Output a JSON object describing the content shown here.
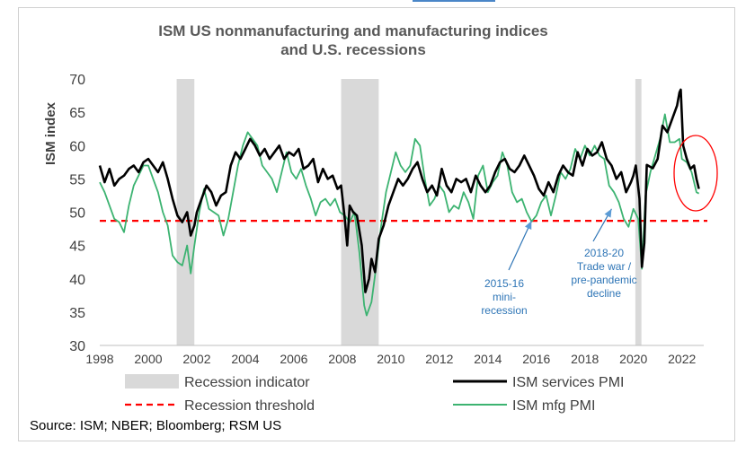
{
  "chart_data": {
    "type": "line",
    "title_line1": "ISM US nonmanufacturing and manufacturing indices",
    "title_line2": "and U.S. recessions",
    "ylabel": "ISM index",
    "xlabel": "",
    "xlim": [
      1998,
      2022.9
    ],
    "ylim": [
      30,
      70
    ],
    "x_ticks": [
      "1998",
      "2000",
      "2002",
      "2004",
      "2006",
      "2008",
      "2010",
      "2012",
      "2014",
      "2016",
      "2018",
      "2020",
      "2022"
    ],
    "y_ticks": [
      "30",
      "35",
      "40",
      "45",
      "50",
      "55",
      "60",
      "65",
      "70"
    ],
    "recession_periods": [
      [
        2001.17,
        2001.9
      ],
      [
        2007.95,
        2009.5
      ],
      [
        2020.08,
        2020.33
      ]
    ],
    "recession_threshold": 48.7,
    "series": [
      {
        "name": "ISM services PMI",
        "color": "#000000",
        "points": [
          [
            1998.0,
            57.0
          ],
          [
            1998.2,
            54.5
          ],
          [
            1998.4,
            56.5
          ],
          [
            1998.6,
            54.0
          ],
          [
            1998.8,
            55.0
          ],
          [
            1999.0,
            55.5
          ],
          [
            1999.2,
            56.5
          ],
          [
            1999.4,
            57.0
          ],
          [
            1999.6,
            56.0
          ],
          [
            1999.8,
            57.5
          ],
          [
            2000.0,
            58.0
          ],
          [
            2000.2,
            57.0
          ],
          [
            2000.4,
            56.0
          ],
          [
            2000.6,
            57.5
          ],
          [
            2000.8,
            55.0
          ],
          [
            2001.0,
            52.0
          ],
          [
            2001.2,
            49.5
          ],
          [
            2001.4,
            48.5
          ],
          [
            2001.6,
            50.0
          ],
          [
            2001.75,
            46.5
          ],
          [
            2001.9,
            48.0
          ],
          [
            2002.0,
            50.0
          ],
          [
            2002.2,
            52.0
          ],
          [
            2002.4,
            54.0
          ],
          [
            2002.6,
            53.0
          ],
          [
            2002.8,
            51.0
          ],
          [
            2003.0,
            52.5
          ],
          [
            2003.2,
            53.0
          ],
          [
            2003.4,
            57.0
          ],
          [
            2003.6,
            59.0
          ],
          [
            2003.8,
            58.0
          ],
          [
            2004.0,
            59.5
          ],
          [
            2004.2,
            61.0
          ],
          [
            2004.4,
            60.0
          ],
          [
            2004.6,
            58.5
          ],
          [
            2004.8,
            59.5
          ],
          [
            2005.0,
            58.0
          ],
          [
            2005.2,
            59.0
          ],
          [
            2005.4,
            60.0
          ],
          [
            2005.6,
            58.0
          ],
          [
            2005.8,
            59.0
          ],
          [
            2006.0,
            58.5
          ],
          [
            2006.2,
            59.5
          ],
          [
            2006.4,
            56.5
          ],
          [
            2006.6,
            57.0
          ],
          [
            2006.8,
            58.0
          ],
          [
            2007.0,
            54.5
          ],
          [
            2007.2,
            56.5
          ],
          [
            2007.4,
            55.0
          ],
          [
            2007.6,
            55.5
          ],
          [
            2007.8,
            53.5
          ],
          [
            2007.95,
            54.0
          ],
          [
            2008.1,
            49.0
          ],
          [
            2008.2,
            45.0
          ],
          [
            2008.3,
            51.0
          ],
          [
            2008.45,
            50.0
          ],
          [
            2008.6,
            49.5
          ],
          [
            2008.8,
            45.0
          ],
          [
            2008.95,
            38.0
          ],
          [
            2009.1,
            40.0
          ],
          [
            2009.2,
            43.0
          ],
          [
            2009.35,
            41.0
          ],
          [
            2009.5,
            46.0
          ],
          [
            2009.7,
            48.0
          ],
          [
            2009.9,
            51.0
          ],
          [
            2010.1,
            53.0
          ],
          [
            2010.3,
            55.0
          ],
          [
            2010.5,
            54.0
          ],
          [
            2010.7,
            55.0
          ],
          [
            2010.9,
            56.5
          ],
          [
            2011.1,
            57.5
          ],
          [
            2011.3,
            55.0
          ],
          [
            2011.5,
            53.0
          ],
          [
            2011.7,
            54.0
          ],
          [
            2011.9,
            52.5
          ],
          [
            2012.1,
            56.5
          ],
          [
            2012.3,
            54.0
          ],
          [
            2012.5,
            53.0
          ],
          [
            2012.7,
            55.0
          ],
          [
            2012.9,
            54.5
          ],
          [
            2013.1,
            55.0
          ],
          [
            2013.3,
            53.0
          ],
          [
            2013.5,
            55.5
          ],
          [
            2013.7,
            54.0
          ],
          [
            2013.9,
            53.0
          ],
          [
            2014.1,
            54.0
          ],
          [
            2014.3,
            56.0
          ],
          [
            2014.5,
            57.5
          ],
          [
            2014.7,
            58.0
          ],
          [
            2014.9,
            56.5
          ],
          [
            2015.1,
            56.0
          ],
          [
            2015.3,
            57.0
          ],
          [
            2015.5,
            58.5
          ],
          [
            2015.7,
            57.0
          ],
          [
            2015.9,
            55.5
          ],
          [
            2016.1,
            53.5
          ],
          [
            2016.3,
            52.5
          ],
          [
            2016.5,
            54.5
          ],
          [
            2016.7,
            53.0
          ],
          [
            2016.9,
            55.5
          ],
          [
            2017.1,
            57.0
          ],
          [
            2017.3,
            56.0
          ],
          [
            2017.5,
            55.5
          ],
          [
            2017.7,
            59.0
          ],
          [
            2017.9,
            57.0
          ],
          [
            2018.1,
            59.5
          ],
          [
            2018.3,
            58.5
          ],
          [
            2018.5,
            59.0
          ],
          [
            2018.7,
            60.5
          ],
          [
            2018.9,
            58.0
          ],
          [
            2019.1,
            57.0
          ],
          [
            2019.3,
            55.0
          ],
          [
            2019.5,
            56.0
          ],
          [
            2019.7,
            53.0
          ],
          [
            2019.9,
            54.5
          ],
          [
            2020.0,
            55.5
          ],
          [
            2020.1,
            57.0
          ],
          [
            2020.25,
            52.0
          ],
          [
            2020.35,
            41.8
          ],
          [
            2020.45,
            45.4
          ],
          [
            2020.55,
            57.1
          ],
          [
            2020.8,
            56.6
          ],
          [
            2021.0,
            58.0
          ],
          [
            2021.2,
            63.0
          ],
          [
            2021.4,
            62.0
          ],
          [
            2021.6,
            64.0
          ],
          [
            2021.8,
            66.0
          ],
          [
            2021.9,
            68.0
          ],
          [
            2021.95,
            68.4
          ],
          [
            2022.05,
            60.0
          ],
          [
            2022.2,
            58.0
          ],
          [
            2022.35,
            56.5
          ],
          [
            2022.5,
            57.0
          ],
          [
            2022.6,
            55.0
          ],
          [
            2022.7,
            53.5
          ]
        ]
      },
      {
        "name": "ISM mfg PMI",
        "color": "#3cb371",
        "points": [
          [
            1998.0,
            54.5
          ],
          [
            1998.2,
            53.0
          ],
          [
            1998.4,
            51.0
          ],
          [
            1998.6,
            49.0
          ],
          [
            1998.8,
            48.5
          ],
          [
            1999.0,
            47.0
          ],
          [
            1999.2,
            51.0
          ],
          [
            1999.4,
            54.0
          ],
          [
            1999.6,
            55.5
          ],
          [
            1999.8,
            57.0
          ],
          [
            2000.0,
            57.0
          ],
          [
            2000.2,
            55.0
          ],
          [
            2000.4,
            53.0
          ],
          [
            2000.6,
            50.0
          ],
          [
            2000.8,
            48.0
          ],
          [
            2001.0,
            43.5
          ],
          [
            2001.2,
            42.5
          ],
          [
            2001.4,
            42.0
          ],
          [
            2001.6,
            45.0
          ],
          [
            2001.75,
            40.8
          ],
          [
            2001.9,
            45.0
          ],
          [
            2002.1,
            50.0
          ],
          [
            2002.3,
            53.5
          ],
          [
            2002.5,
            50.5
          ],
          [
            2002.7,
            50.0
          ],
          [
            2002.9,
            49.5
          ],
          [
            2003.1,
            46.5
          ],
          [
            2003.3,
            49.0
          ],
          [
            2003.5,
            53.0
          ],
          [
            2003.7,
            57.0
          ],
          [
            2003.9,
            60.0
          ],
          [
            2004.1,
            62.0
          ],
          [
            2004.3,
            61.0
          ],
          [
            2004.5,
            60.0
          ],
          [
            2004.7,
            57.0
          ],
          [
            2004.9,
            56.0
          ],
          [
            2005.1,
            55.0
          ],
          [
            2005.3,
            53.0
          ],
          [
            2005.5,
            56.0
          ],
          [
            2005.7,
            59.0
          ],
          [
            2005.9,
            56.0
          ],
          [
            2006.1,
            55.0
          ],
          [
            2006.3,
            56.5
          ],
          [
            2006.5,
            54.0
          ],
          [
            2006.7,
            52.0
          ],
          [
            2006.9,
            49.5
          ],
          [
            2007.1,
            51.5
          ],
          [
            2007.3,
            52.0
          ],
          [
            2007.5,
            51.0
          ],
          [
            2007.7,
            52.0
          ],
          [
            2007.9,
            50.0
          ],
          [
            2008.1,
            49.5
          ],
          [
            2008.3,
            48.5
          ],
          [
            2008.5,
            50.0
          ],
          [
            2008.7,
            44.0
          ],
          [
            2008.9,
            36.0
          ],
          [
            2009.0,
            34.5
          ],
          [
            2009.2,
            36.5
          ],
          [
            2009.4,
            42.0
          ],
          [
            2009.6,
            48.0
          ],
          [
            2009.8,
            53.0
          ],
          [
            2010.0,
            56.0
          ],
          [
            2010.2,
            59.0
          ],
          [
            2010.4,
            57.0
          ],
          [
            2010.6,
            56.0
          ],
          [
            2010.8,
            57.0
          ],
          [
            2011.0,
            61.0
          ],
          [
            2011.2,
            60.0
          ],
          [
            2011.4,
            55.0
          ],
          [
            2011.6,
            51.0
          ],
          [
            2011.8,
            52.0
          ],
          [
            2012.0,
            54.0
          ],
          [
            2012.2,
            53.0
          ],
          [
            2012.4,
            50.0
          ],
          [
            2012.6,
            51.0
          ],
          [
            2012.8,
            50.5
          ],
          [
            2013.0,
            53.0
          ],
          [
            2013.2,
            51.5
          ],
          [
            2013.4,
            49.0
          ],
          [
            2013.6,
            55.5
          ],
          [
            2013.8,
            57.0
          ],
          [
            2014.0,
            53.0
          ],
          [
            2014.2,
            54.5
          ],
          [
            2014.4,
            55.5
          ],
          [
            2014.6,
            59.0
          ],
          [
            2014.8,
            57.0
          ],
          [
            2015.0,
            53.0
          ],
          [
            2015.2,
            51.5
          ],
          [
            2015.4,
            52.0
          ],
          [
            2015.6,
            50.0
          ],
          [
            2015.8,
            48.6
          ],
          [
            2016.0,
            49.5
          ],
          [
            2016.2,
            51.5
          ],
          [
            2016.4,
            52.5
          ],
          [
            2016.6,
            49.5
          ],
          [
            2016.8,
            52.5
          ],
          [
            2017.0,
            56.0
          ],
          [
            2017.2,
            55.0
          ],
          [
            2017.4,
            56.5
          ],
          [
            2017.6,
            59.5
          ],
          [
            2017.8,
            58.0
          ],
          [
            2018.0,
            60.0
          ],
          [
            2018.2,
            58.5
          ],
          [
            2018.4,
            60.0
          ],
          [
            2018.6,
            58.5
          ],
          [
            2018.8,
            58.0
          ],
          [
            2019.0,
            54.0
          ],
          [
            2019.2,
            53.0
          ],
          [
            2019.4,
            51.5
          ],
          [
            2019.6,
            49.0
          ],
          [
            2019.8,
            47.8
          ],
          [
            2020.0,
            50.5
          ],
          [
            2020.2,
            49.0
          ],
          [
            2020.35,
            41.5
          ],
          [
            2020.5,
            52.5
          ],
          [
            2020.7,
            56.0
          ],
          [
            2020.9,
            58.5
          ],
          [
            2021.1,
            61.0
          ],
          [
            2021.3,
            64.7
          ],
          [
            2021.5,
            60.5
          ],
          [
            2021.7,
            60.5
          ],
          [
            2021.9,
            61.0
          ],
          [
            2022.0,
            58.0
          ],
          [
            2022.2,
            57.5
          ],
          [
            2022.4,
            56.0
          ],
          [
            2022.6,
            53.0
          ],
          [
            2022.7,
            52.8
          ]
        ]
      }
    ],
    "annotations": [
      {
        "lines": [
          "2015-16",
          "mini-",
          "recession"
        ],
        "points_to": [
          2015.8,
          48.7
        ]
      },
      {
        "lines": [
          "2018-20",
          "Trade war /",
          "pre-pandemic",
          "decline"
        ],
        "points_to": [
          2019.1,
          50.5
        ]
      }
    ],
    "legend": [
      {
        "label": "Recession indicator",
        "kind": "box",
        "color": "#d9d9d9"
      },
      {
        "label": "ISM services PMI",
        "kind": "line",
        "color": "#000000"
      },
      {
        "label": "Recession threshold",
        "kind": "dash",
        "color": "#ff0000"
      },
      {
        "label": "ISM mfg PMI",
        "kind": "line",
        "color": "#3cb371"
      }
    ],
    "legend_position": "bottom",
    "highlight_circle_color": "#ff0000",
    "recession_color": "#d9d9d9",
    "threshold_color": "#ff0000",
    "annotation_color": "#2e75b6",
    "grid": false
  },
  "source": "Source: ISM; NBER; Bloomberg; RSM US"
}
